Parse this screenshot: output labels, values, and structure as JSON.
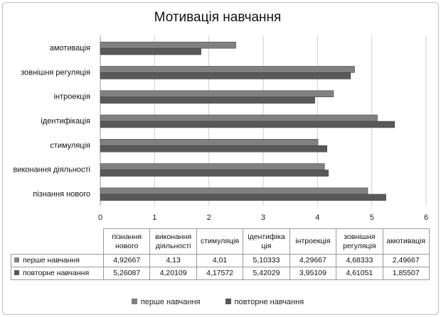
{
  "chart_data": {
    "type": "bar",
    "orientation": "horizontal",
    "title": "Мотивація навчання",
    "categories": [
      "пізнання нового",
      "виконання діяльності",
      "стимуляція",
      "ідентифікація",
      "інтроекція",
      "зовнішня регуляція",
      "амотивація"
    ],
    "table_headers": [
      "пізнання нового",
      "виконання діяльності",
      "стимуляція",
      "ідентифіка ція",
      "інтроекція",
      "зовнішня регуляція",
      "амотивація"
    ],
    "series": [
      {
        "name": "перше навчання",
        "color": "#808080",
        "values": [
          4.92667,
          4.13,
          4.01,
          5.10333,
          4.29667,
          4.68333,
          2.49667
        ],
        "labels": [
          "4,92667",
          "4,13",
          "4,01",
          "5,10333",
          "4,29667",
          "4,68333",
          "2,49667"
        ]
      },
      {
        "name": "повторне навчання",
        "color": "#595959",
        "values": [
          5.26087,
          4.20109,
          4.17572,
          5.42029,
          3.95109,
          4.61051,
          1.85507
        ],
        "labels": [
          "5,26087",
          "4,20109",
          "4,17572",
          "5,42029",
          "3,95109",
          "4,61051",
          "1,85507"
        ]
      }
    ],
    "xlim": [
      0,
      6
    ],
    "xticks": [
      "0",
      "1",
      "2",
      "3",
      "4",
      "5",
      "6"
    ],
    "grid": "vertical",
    "legend_position": "bottom",
    "data_table": true
  }
}
